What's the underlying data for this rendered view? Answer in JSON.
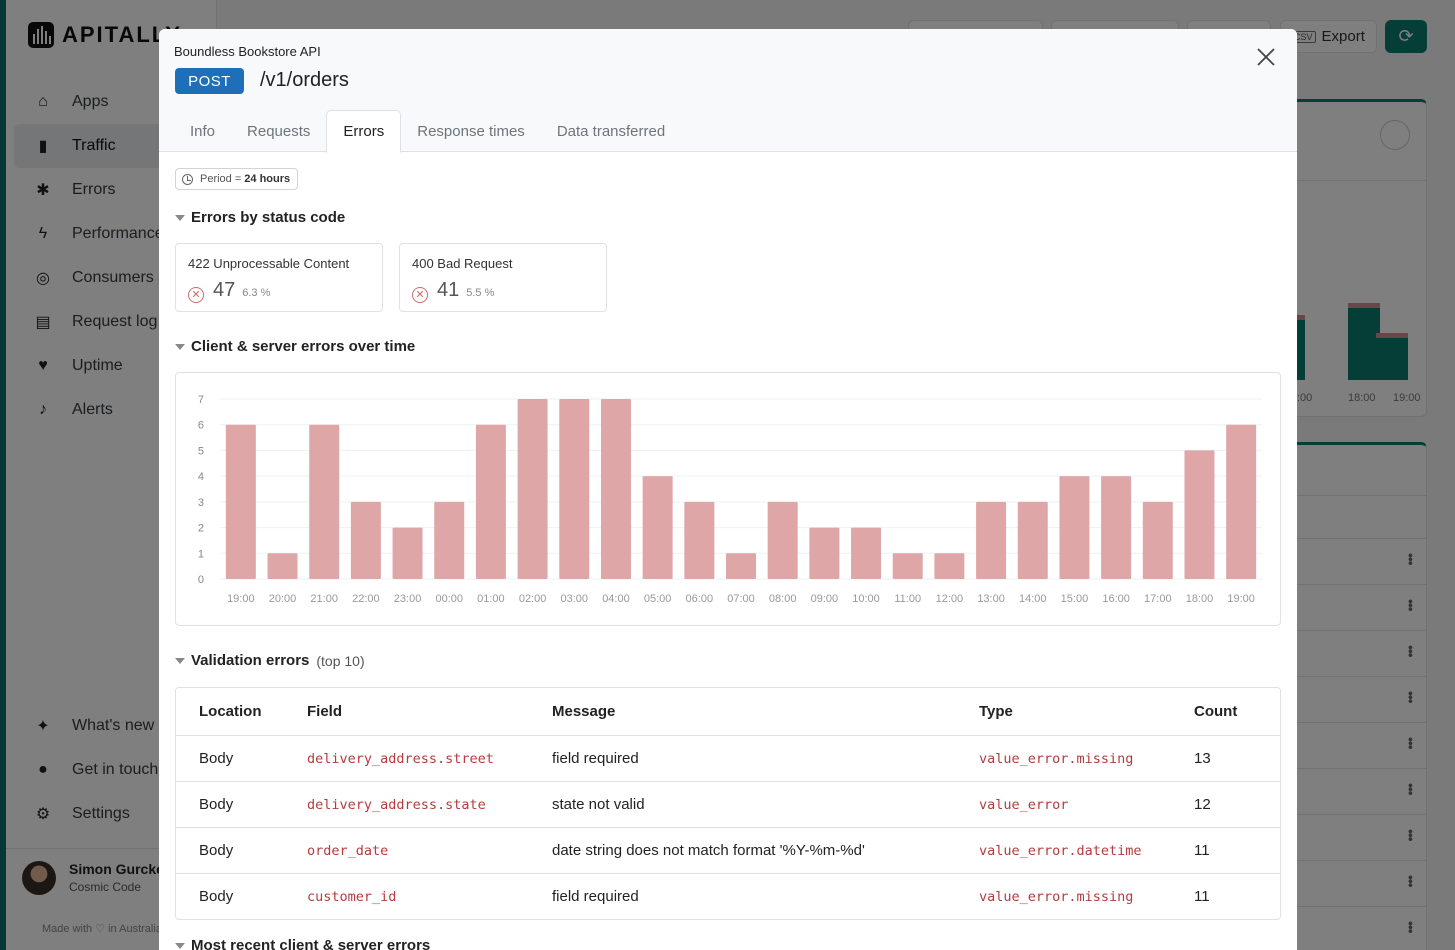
{
  "sidebar": {
    "brand": "APITALLY",
    "items": [
      {
        "label": "Apps",
        "icon": "home-icon"
      },
      {
        "label": "Traffic",
        "icon": "bar-chart-icon",
        "active": true
      },
      {
        "label": "Errors",
        "icon": "bug-icon"
      },
      {
        "label": "Performance",
        "icon": "lightning-icon"
      },
      {
        "label": "Consumers",
        "icon": "fingerprint-icon"
      },
      {
        "label": "Request log",
        "icon": "scroll-icon"
      },
      {
        "label": "Uptime",
        "icon": "heartbeat-icon"
      },
      {
        "label": "Alerts",
        "icon": "bell-icon"
      }
    ],
    "bottom_items": [
      {
        "label": "What's new",
        "icon": "sparkles-icon"
      },
      {
        "label": "Get in touch",
        "icon": "chat-icon"
      },
      {
        "label": "Settings",
        "icon": "gear-icon"
      }
    ],
    "user": {
      "name": "Simon Gurcke",
      "org": "Cosmic Code"
    },
    "footer": "Made with ♡ in Australia"
  },
  "topbar": {
    "export_label": "Export",
    "csv_label": "CSV"
  },
  "background_chart": {
    "ticks": [
      ":00",
      "18:00",
      "19:00"
    ]
  },
  "modal": {
    "app_name": "Boundless Bookstore API",
    "method": "POST",
    "path": "/v1/orders",
    "tabs": [
      "Info",
      "Requests",
      "Errors",
      "Response times",
      "Data transferred"
    ],
    "active_tab": "Errors",
    "period_label": "Period = ",
    "period_value": "24 hours",
    "sections": {
      "errors_by_status": "Errors by status code",
      "errors_over_time": "Client & server errors over time",
      "validation_errors": "Validation errors",
      "validation_note": "(top 10)",
      "next_section": "Most recent client & server errors"
    },
    "status_cards": [
      {
        "label": "422 Unprocessable Content",
        "count": "47",
        "pct": "6.3 %"
      },
      {
        "label": "400 Bad Request",
        "count": "41",
        "pct": "5.5 %"
      }
    ],
    "validation_table": {
      "headers": [
        "Location",
        "Field",
        "Message",
        "Type",
        "Count"
      ],
      "rows": [
        [
          "Body",
          "delivery_address.street",
          "field required",
          "value_error.missing",
          "13"
        ],
        [
          "Body",
          "delivery_address.state",
          "state not valid",
          "value_error",
          "12"
        ],
        [
          "Body",
          "order_date",
          "date string does not match format '%Y-%m-%d'",
          "value_error.datetime",
          "11"
        ],
        [
          "Body",
          "customer_id",
          "field required",
          "value_error.missing",
          "11"
        ]
      ]
    }
  },
  "colors": {
    "accent": "#0b7a6f",
    "error_bar": "#dfa6a8",
    "method_badge": "#1c6fb8",
    "mono_text": "#b53c3c"
  },
  "chart_data": {
    "type": "bar",
    "title": "Client & server errors over time",
    "categories": [
      "19:00",
      "20:00",
      "21:00",
      "22:00",
      "23:00",
      "00:00",
      "01:00",
      "02:00",
      "03:00",
      "04:00",
      "05:00",
      "06:00",
      "07:00",
      "08:00",
      "09:00",
      "10:00",
      "11:00",
      "12:00",
      "13:00",
      "14:00",
      "15:00",
      "16:00",
      "17:00",
      "18:00",
      "19:00"
    ],
    "values": [
      6,
      1,
      6,
      3,
      2,
      3,
      6,
      7,
      7,
      7,
      4,
      3,
      1,
      3,
      2,
      2,
      1,
      1,
      3,
      3,
      4,
      4,
      3,
      5,
      6
    ],
    "ylim": [
      0,
      7
    ],
    "yticks": [
      0,
      1,
      2,
      3,
      4,
      5,
      6,
      7
    ],
    "grid": true,
    "xlabel": "",
    "ylabel": ""
  }
}
